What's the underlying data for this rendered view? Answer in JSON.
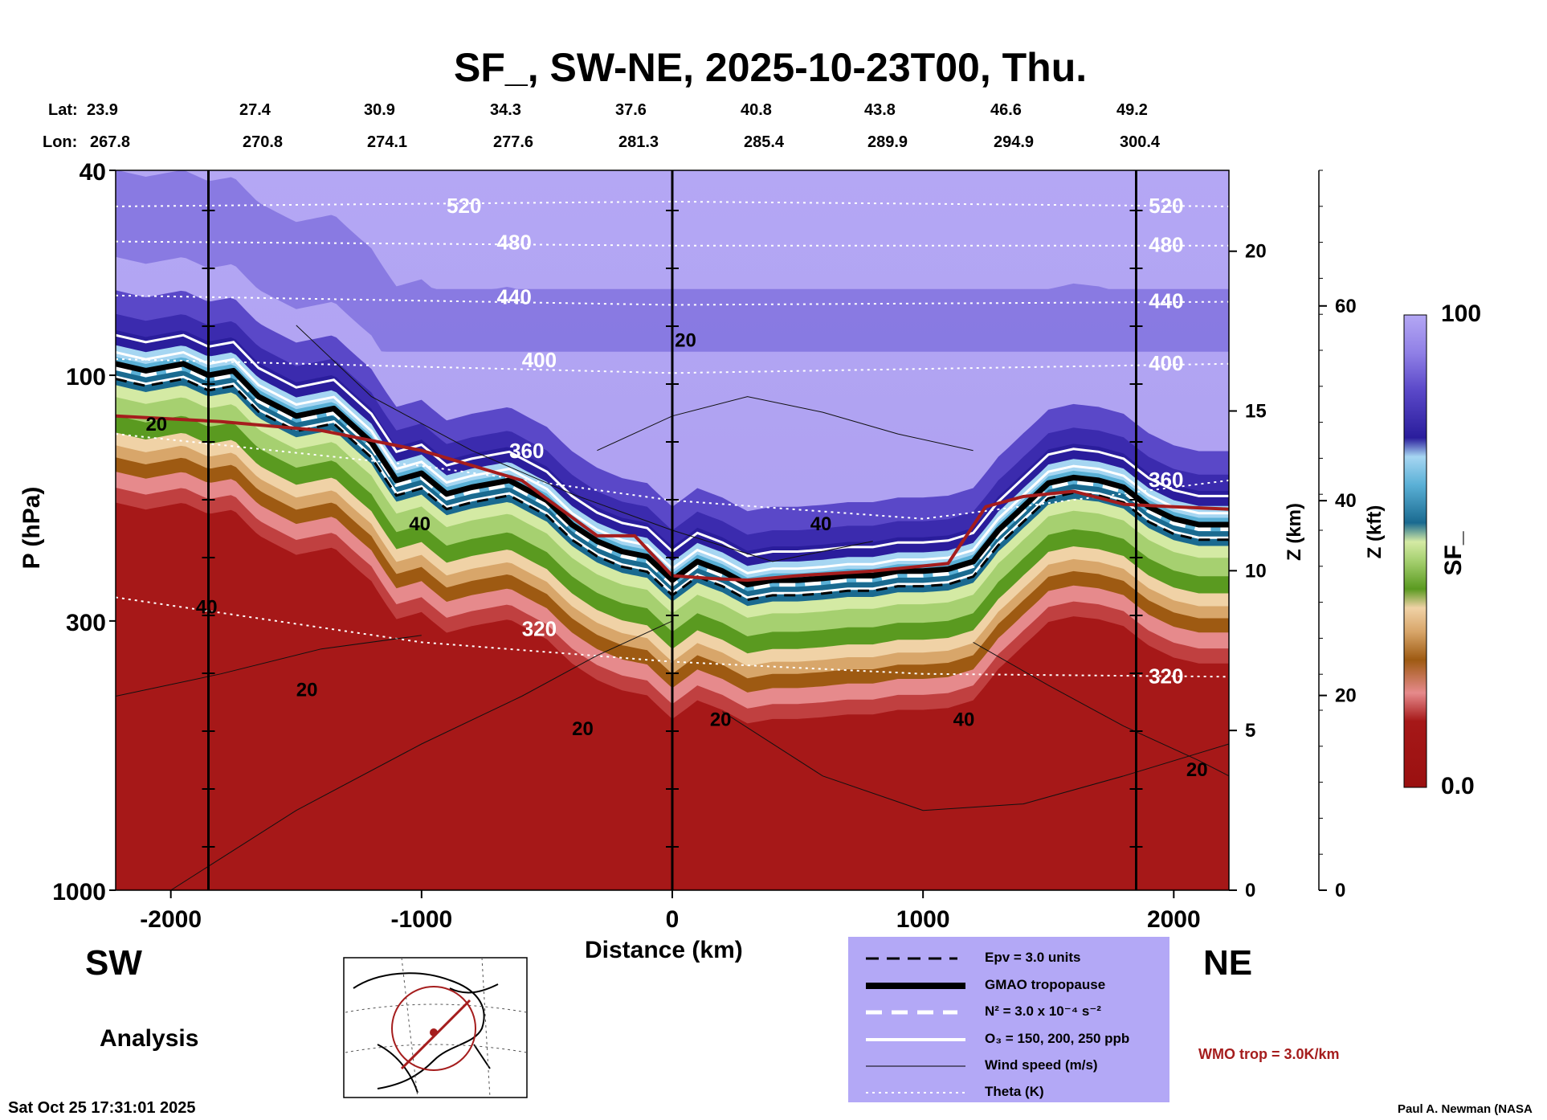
{
  "header": {
    "title": "SF_, SW-NE, 2025-10-23T00, Thu.",
    "lat_label": "Lat:",
    "lon_label": "Lon:",
    "lat": [
      "23.9",
      "27.4",
      "30.9",
      "34.3",
      "37.6",
      "40.8",
      "43.8",
      "46.6",
      "49.2"
    ],
    "lon": [
      "267.8",
      "270.8",
      "274.1",
      "277.6",
      "281.3",
      "285.4",
      "289.9",
      "294.9",
      "300.4"
    ]
  },
  "direction": {
    "left": "SW",
    "right": "NE"
  },
  "analysis_label": "Analysis",
  "timestamp": "Sat Oct 25 17:31:01 2025",
  "credit": "Paul A. Newman (NASA",
  "wmo_label": "WMO trop = 3.0K/km",
  "legend": {
    "epv": "Epv = 3.0 units",
    "gmao": "GMAO tropopause",
    "n2": "N² = 3.0 x 10⁻⁴ s⁻²",
    "o3": "O₃ = 150, 200, 250 ppb",
    "wind": "Wind speed (m/s)",
    "theta": "Theta (K)"
  },
  "colorbar": {
    "label": "SF_",
    "max": "100",
    "min": "0.0"
  },
  "chart_data": {
    "type": "heatmap",
    "title": "SF_, SW-NE, 2025-10-23T00, Thu.",
    "xlabel": "Distance (km)",
    "ylabel": "P (hPa)",
    "y2label": "Z (km)",
    "y3label": "Z (kft)",
    "xlim": [
      -2220,
      2220
    ],
    "ylim": [
      1000,
      40
    ],
    "yscale": "log",
    "x_ticks": [
      -2000,
      -1000,
      0,
      1000,
      2000
    ],
    "x_tick_labels": [
      "-2000",
      "-1000",
      "0",
      "1000",
      "2000"
    ],
    "p_ticks": [
      40,
      100,
      300,
      1000
    ],
    "p_tick_labels": [
      "40",
      "100",
      "300",
      "1000"
    ],
    "z_km_ticks": [
      0,
      5,
      10,
      15,
      20
    ],
    "z_km_tick_labels": [
      "0",
      "5",
      "10",
      "15",
      "20"
    ],
    "z_kft_ticks": [
      0,
      20,
      40,
      60
    ],
    "z_kft_tick_labels": [
      "0",
      "20",
      "40",
      "60"
    ],
    "vertical_markers_km": [
      -1850,
      0,
      1850
    ],
    "colorscale_range": [
      0,
      100
    ],
    "tropopause_gmao": {
      "x": [
        -2220,
        -2100,
        -1950,
        -1850,
        -1750,
        -1650,
        -1500,
        -1350,
        -1200,
        -1100,
        -1000,
        -900,
        -800,
        -650,
        -500,
        -400,
        -300,
        -200,
        -100,
        0,
        100,
        200,
        300,
        400,
        500,
        600,
        700,
        800,
        900,
        1000,
        1100,
        1200,
        1300,
        1400,
        1500,
        1600,
        1700,
        1800,
        1900,
        2000,
        2100,
        2220
      ],
      "p": [
        95,
        98,
        95,
        100,
        98,
        110,
        120,
        116,
        135,
        160,
        155,
        170,
        165,
        160,
        175,
        195,
        210,
        220,
        225,
        250,
        230,
        240,
        255,
        250,
        250,
        248,
        245,
        245,
        240,
        240,
        238,
        230,
        200,
        180,
        162,
        158,
        160,
        165,
        180,
        190,
        195,
        195
      ]
    },
    "tropopause_wmo": {
      "x": [
        -2220,
        -1800,
        -1400,
        -1000,
        -600,
        -300,
        -150,
        0,
        150,
        300,
        500,
        800,
        1100,
        1250,
        1400,
        1600,
        1800,
        2000,
        2220
      ],
      "p": [
        120,
        123,
        128,
        140,
        160,
        205,
        205,
        245,
        248,
        250,
        245,
        240,
        232,
        180,
        172,
        168,
        178,
        180,
        182
      ]
    },
    "theta_contours": [
      {
        "label": "520",
        "x": [
          -2220,
          0,
          2220
        ],
        "p": [
          47,
          46,
          47
        ]
      },
      {
        "label": "480",
        "x": [
          -2220,
          0,
          2220
        ],
        "p": [
          55,
          56,
          56
        ]
      },
      {
        "label": "440",
        "x": [
          -2220,
          0,
          2220
        ],
        "p": [
          70,
          73,
          72
        ]
      },
      {
        "label": "400",
        "x": [
          -2220,
          0,
          2220
        ],
        "p": [
          93,
          99,
          95
        ]
      },
      {
        "label": "360",
        "x": [
          -2220,
          -1000,
          0,
          1000,
          2220
        ],
        "p": [
          130,
          150,
          175,
          190,
          160
        ]
      },
      {
        "label": "320",
        "x": [
          -2220,
          -1000,
          0,
          1000,
          2220
        ],
        "p": [
          270,
          330,
          360,
          380,
          385
        ]
      }
    ],
    "wind_labels": [
      "20",
      "20",
      "40",
      "40",
      "20",
      "40",
      "20",
      "40",
      "20",
      "20"
    ]
  }
}
